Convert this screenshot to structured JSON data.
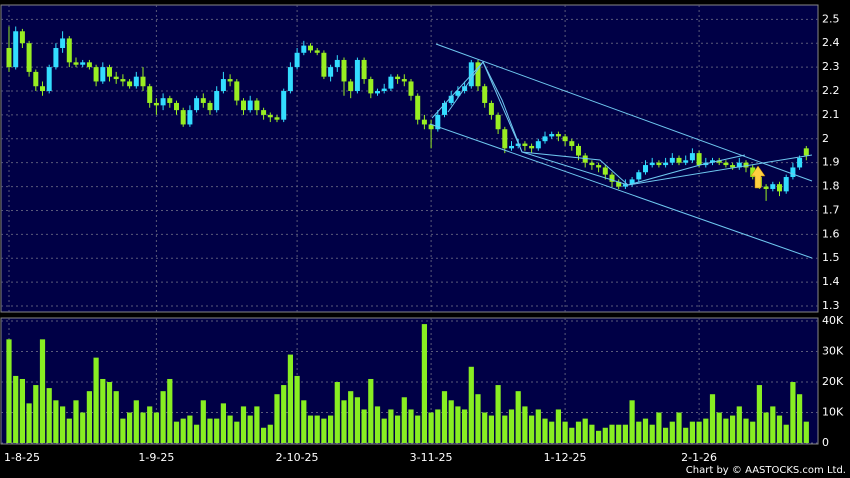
{
  "chart_data": {
    "type": "candlestick",
    "categories": [
      "1-8-25",
      null,
      null,
      null,
      null,
      null,
      null,
      null,
      null,
      null,
      null,
      null,
      null,
      null,
      null,
      null,
      null,
      null,
      null,
      null,
      null,
      null,
      "1-9-25",
      null,
      null,
      null,
      null,
      null,
      null,
      null,
      null,
      null,
      null,
      null,
      null,
      null,
      null,
      null,
      null,
      null,
      null,
      null,
      null,
      "2-10-25",
      null,
      null,
      null,
      null,
      null,
      null,
      null,
      null,
      null,
      null,
      null,
      null,
      null,
      null,
      null,
      null,
      null,
      null,
      null,
      "3-11-25",
      null,
      null,
      null,
      null,
      null,
      null,
      null,
      null,
      null,
      null,
      null,
      null,
      null,
      null,
      null,
      null,
      null,
      null,
      null,
      "1-12-25",
      null,
      null,
      null,
      null,
      null,
      null,
      null,
      null,
      null,
      null,
      null,
      null,
      null,
      null,
      null,
      null,
      null,
      null,
      null,
      "2-1-26",
      null,
      null,
      null,
      null,
      null,
      null,
      null,
      null,
      null,
      null,
      null,
      null,
      null,
      null,
      null,
      null
    ],
    "open": [
      2.38,
      2.3,
      2.45,
      2.4,
      2.28,
      2.22,
      2.2,
      2.3,
      2.38,
      2.42,
      2.32,
      2.31,
      2.32,
      2.3,
      2.24,
      2.3,
      2.26,
      2.25,
      2.24,
      2.22,
      2.26,
      2.22,
      2.15,
      2.14,
      2.17,
      2.15,
      2.12,
      2.06,
      2.12,
      2.17,
      2.15,
      2.12,
      2.2,
      2.25,
      2.24,
      2.16,
      2.12,
      2.16,
      2.12,
      2.1,
      2.09,
      2.08,
      2.2,
      2.3,
      2.36,
      2.39,
      2.37,
      2.36,
      2.26,
      2.3,
      2.33,
      2.24,
      2.2,
      2.33,
      2.25,
      2.19,
      2.2,
      2.21,
      2.26,
      2.25,
      2.24,
      2.18,
      2.08,
      2.06,
      2.04,
      2.1,
      2.15,
      2.18,
      2.2,
      2.22,
      2.32,
      2.22,
      2.15,
      2.1,
      2.04,
      1.96,
      1.97,
      1.98,
      1.97,
      1.96,
      1.99,
      2.01,
      2.02,
      2.01,
      1.99,
      1.97,
      1.93,
      1.9,
      1.89,
      1.88,
      1.85,
      1.82,
      1.8,
      1.81,
      1.83,
      1.86,
      1.89,
      1.9,
      1.89,
      1.9,
      1.92,
      1.9,
      1.91,
      1.94,
      1.89,
      1.9,
      1.91,
      1.9,
      1.89,
      1.88,
      1.9,
      1.88,
      1.84,
      1.8,
      1.79,
      1.81,
      1.78,
      1.84,
      1.88,
      1.96
    ],
    "high": [
      2.47,
      2.47,
      2.46,
      2.41,
      2.29,
      2.24,
      2.31,
      2.4,
      2.45,
      2.43,
      2.34,
      2.33,
      2.33,
      2.31,
      2.32,
      2.31,
      2.28,
      2.27,
      2.25,
      2.28,
      2.3,
      2.23,
      2.17,
      2.19,
      2.18,
      2.16,
      2.13,
      2.14,
      2.18,
      2.19,
      2.16,
      2.22,
      2.28,
      2.27,
      2.25,
      2.17,
      2.18,
      2.17,
      2.13,
      2.11,
      2.1,
      2.21,
      2.32,
      2.38,
      2.41,
      2.4,
      2.38,
      2.37,
      2.31,
      2.35,
      2.34,
      2.25,
      2.34,
      2.34,
      2.26,
      2.21,
      2.23,
      2.27,
      2.27,
      2.27,
      2.25,
      2.19,
      2.1,
      2.08,
      2.12,
      2.16,
      2.2,
      2.22,
      2.24,
      2.33,
      2.33,
      2.23,
      2.16,
      2.11,
      2.05,
      1.99,
      2.0,
      1.99,
      1.98,
      2.0,
      2.03,
      2.03,
      2.03,
      2.02,
      2.0,
      1.98,
      1.94,
      1.91,
      1.9,
      1.89,
      1.86,
      1.83,
      1.83,
      1.84,
      1.87,
      1.91,
      1.92,
      1.91,
      1.92,
      1.94,
      1.93,
      1.93,
      1.96,
      1.95,
      1.92,
      1.92,
      1.92,
      1.91,
      1.9,
      1.92,
      1.91,
      1.89,
      1.85,
      1.81,
      1.82,
      1.82,
      1.85,
      1.9,
      1.93,
      1.97
    ],
    "low": [
      2.28,
      2.29,
      2.38,
      2.26,
      2.2,
      2.18,
      2.19,
      2.29,
      2.36,
      2.3,
      2.3,
      2.3,
      2.29,
      2.22,
      2.23,
      2.24,
      2.23,
      2.22,
      2.21,
      2.21,
      2.2,
      2.13,
      2.1,
      2.12,
      2.13,
      2.1,
      2.05,
      2.05,
      2.11,
      2.13,
      2.1,
      2.11,
      2.19,
      2.22,
      2.14,
      2.1,
      2.11,
      2.1,
      2.08,
      2.07,
      2.07,
      2.07,
      2.19,
      2.29,
      2.35,
      2.36,
      2.35,
      2.25,
      2.24,
      2.28,
      2.18,
      2.17,
      2.19,
      2.23,
      2.17,
      2.18,
      2.19,
      2.2,
      2.23,
      2.22,
      2.16,
      2.06,
      2.04,
      1.96,
      2.03,
      2.09,
      2.14,
      2.17,
      2.19,
      2.21,
      2.2,
      2.13,
      2.08,
      2.02,
      1.94,
      1.95,
      1.96,
      1.95,
      1.94,
      1.95,
      1.98,
      2.0,
      1.99,
      1.97,
      1.95,
      1.91,
      1.88,
      1.87,
      1.86,
      1.83,
      1.8,
      1.79,
      1.79,
      1.8,
      1.82,
      1.85,
      1.88,
      1.88,
      1.88,
      1.89,
      1.89,
      1.89,
      1.9,
      1.88,
      1.88,
      1.89,
      1.89,
      1.88,
      1.87,
      1.87,
      1.86,
      1.83,
      1.79,
      1.74,
      1.78,
      1.76,
      1.77,
      1.83,
      1.87,
      1.91
    ],
    "close": [
      2.3,
      2.45,
      2.4,
      2.28,
      2.22,
      2.2,
      2.3,
      2.38,
      2.42,
      2.32,
      2.31,
      2.32,
      2.3,
      2.24,
      2.3,
      2.26,
      2.25,
      2.24,
      2.22,
      2.26,
      2.22,
      2.15,
      2.14,
      2.17,
      2.15,
      2.12,
      2.06,
      2.12,
      2.17,
      2.15,
      2.12,
      2.2,
      2.25,
      2.24,
      2.16,
      2.12,
      2.16,
      2.12,
      2.1,
      2.09,
      2.08,
      2.2,
      2.3,
      2.36,
      2.39,
      2.37,
      2.36,
      2.26,
      2.3,
      2.33,
      2.24,
      2.2,
      2.33,
      2.25,
      2.19,
      2.2,
      2.21,
      2.26,
      2.25,
      2.24,
      2.18,
      2.08,
      2.06,
      2.04,
      2.1,
      2.15,
      2.18,
      2.2,
      2.22,
      2.32,
      2.22,
      2.15,
      2.1,
      2.04,
      1.96,
      1.97,
      1.98,
      1.97,
      1.96,
      1.99,
      2.01,
      2.02,
      2.01,
      1.99,
      1.97,
      1.93,
      1.9,
      1.89,
      1.88,
      1.85,
      1.82,
      1.8,
      1.81,
      1.83,
      1.86,
      1.89,
      1.9,
      1.89,
      1.9,
      1.92,
      1.9,
      1.91,
      1.94,
      1.89,
      1.9,
      1.91,
      1.9,
      1.89,
      1.88,
      1.9,
      1.88,
      1.84,
      1.8,
      1.79,
      1.81,
      1.78,
      1.84,
      1.88,
      1.92,
      1.93
    ],
    "volume": [
      34000,
      22000,
      21000,
      13000,
      19000,
      34000,
      18000,
      14000,
      12000,
      8000,
      14000,
      10000,
      17000,
      28000,
      21000,
      20000,
      17000,
      8000,
      10000,
      14000,
      10000,
      12000,
      10000,
      17000,
      21000,
      7000,
      8000,
      9000,
      6000,
      14000,
      8000,
      8000,
      13000,
      9000,
      7000,
      12000,
      9000,
      12000,
      5000,
      6000,
      16000,
      19000,
      29000,
      22000,
      14000,
      9000,
      9000,
      8000,
      9000,
      20000,
      14000,
      17000,
      15000,
      11000,
      21000,
      12000,
      8000,
      11000,
      9000,
      15000,
      11000,
      9000,
      39000,
      10000,
      11000,
      17000,
      14000,
      12000,
      11000,
      25000,
      16000,
      10000,
      9000,
      19000,
      9000,
      11000,
      17000,
      12000,
      9000,
      11000,
      8000,
      7000,
      11000,
      7000,
      5000,
      7000,
      8000,
      6000,
      4000,
      5000,
      6000,
      6000,
      6000,
      14000,
      7000,
      8000,
      6000,
      10000,
      5000,
      7000,
      10000,
      5000,
      7000,
      7000,
      8000,
      16000,
      10000,
      8000,
      9000,
      12000,
      8000,
      7000,
      19000,
      10000,
      12000,
      9000,
      6000,
      20000,
      16000,
      7000
    ],
    "up_color": "#33ddff",
    "down_color": "#99ee22",
    "volume_color": "#88ee22",
    "ylim": [
      1.275,
      2.56
    ],
    "yticks": [
      2.5,
      2.4,
      2.3,
      2.2,
      2.1,
      2,
      1.9,
      1.8,
      1.7,
      1.6,
      1.5,
      1.4,
      1.3
    ],
    "volume_ylim": [
      0,
      41000
    ],
    "volume_yticks": [
      {
        "value": 40000,
        "label": "40K"
      },
      {
        "value": 30000,
        "label": "30K"
      },
      {
        "value": 20000,
        "label": "20K"
      },
      {
        "value": 10000,
        "label": "10K"
      },
      0
    ],
    "grid": true,
    "credit": "Chart by © AASTOCKS.com Ltd."
  }
}
